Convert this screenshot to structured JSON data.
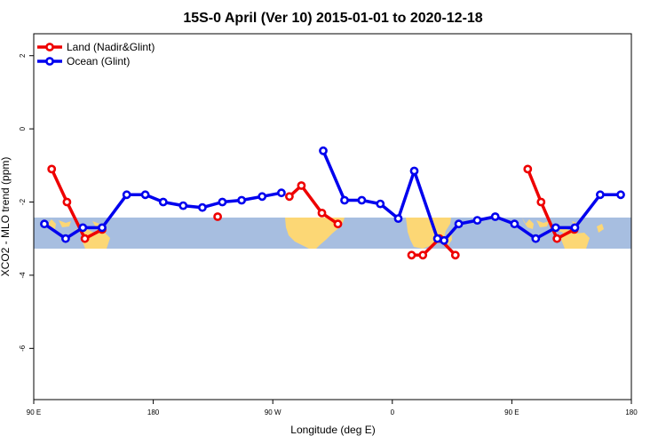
{
  "chart_data": {
    "type": "line",
    "title": "15S-0 April (Ver 10)   2015-01-01 to 2020-12-18",
    "xlabel": "Longitude (deg E)",
    "ylabel": "XCO2 - MLO trend (ppm)",
    "xlim": [
      90,
      540
    ],
    "ylim": [
      -7.4,
      2.6
    ],
    "x_ticks": [
      {
        "value": 90,
        "label": "90 E"
      },
      {
        "value": 180,
        "label": "180"
      },
      {
        "value": 270,
        "label": "90 W"
      },
      {
        "value": 360,
        "label": "0"
      },
      {
        "value": 450,
        "label": "90 E"
      },
      {
        "value": 540,
        "label": "180"
      }
    ],
    "y_ticks": [
      {
        "value": 2,
        "label": "2"
      },
      {
        "value": 0,
        "label": "0"
      },
      {
        "value": -2,
        "label": "-2"
      },
      {
        "value": -4,
        "label": "-4"
      },
      {
        "value": -6,
        "label": "-6"
      }
    ],
    "legend_position": "top-left",
    "map_band": {
      "lat_range": "15S-0",
      "y_range": [
        -3.2,
        -2.4
      ],
      "ocean_color": "#a7bee0",
      "land_color": "#fcd775"
    },
    "series": [
      {
        "name": "Land (Nadir&Glint)",
        "color": "#ee0000",
        "segments": [
          [
            [
              103.5,
              -1.1
            ],
            [
              115,
              -2.0
            ],
            [
              128.5,
              -3.0
            ],
            [
              141.5,
              -2.75
            ]
          ],
          [
            [
              228.5,
              -2.4
            ]
          ],
          [
            [
              282.5,
              -1.85
            ],
            [
              291.5,
              -1.55
            ],
            [
              307,
              -2.3
            ],
            [
              319,
              -2.6
            ]
          ],
          [
            [
              374.5,
              -3.45
            ],
            [
              383,
              -3.45
            ],
            [
              395.5,
              -3.0
            ],
            [
              407.5,
              -3.45
            ]
          ],
          [
            [
              462,
              -1.1
            ],
            [
              472,
              -2.0
            ],
            [
              484,
              -3.0
            ],
            [
              497,
              -2.75
            ]
          ]
        ]
      },
      {
        "name": "Ocean (Glint)",
        "color": "#0000ee",
        "segments": [
          [
            [
              98,
              -2.6
            ],
            [
              114,
              -3.0
            ],
            [
              127,
              -2.7
            ],
            [
              141.5,
              -2.7
            ],
            [
              160,
              -1.8
            ],
            [
              174,
              -1.8
            ],
            [
              187.5,
              -2.0
            ],
            [
              202.5,
              -2.1
            ],
            [
              217,
              -2.15
            ],
            [
              232,
              -2.0
            ],
            [
              246.5,
              -1.95
            ],
            [
              262,
              -1.85
            ],
            [
              276.5,
              -1.75
            ]
          ],
          [
            [
              308,
              -0.6
            ],
            [
              324,
              -1.95
            ],
            [
              337,
              -1.95
            ],
            [
              351,
              -2.05
            ],
            [
              364.5,
              -2.45
            ],
            [
              376.5,
              -1.15
            ],
            [
              394,
              -3.0
            ],
            [
              399,
              -3.05
            ],
            [
              410,
              -2.6
            ],
            [
              424,
              -2.5
            ],
            [
              437.5,
              -2.4
            ],
            [
              452,
              -2.6
            ],
            [
              468,
              -3.0
            ],
            [
              483,
              -2.7
            ],
            [
              497.5,
              -2.7
            ],
            [
              516.5,
              -1.8
            ],
            [
              532,
              -1.8
            ]
          ]
        ]
      }
    ]
  }
}
